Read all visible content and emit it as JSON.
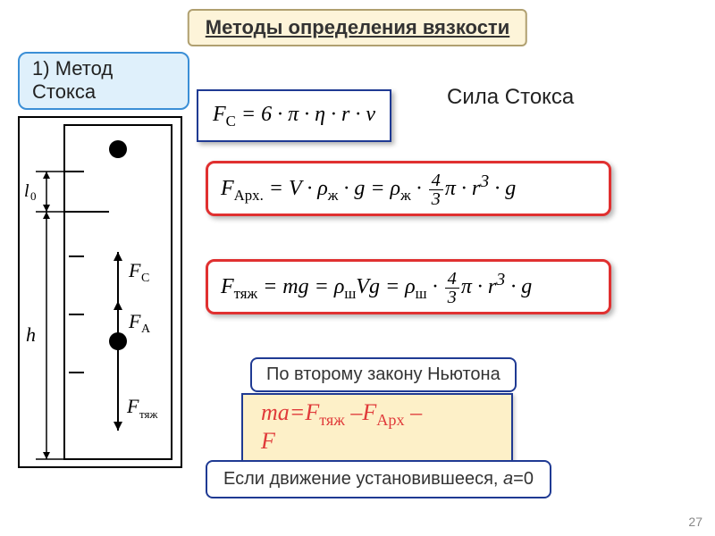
{
  "title": "Методы определения вязкости",
  "method": {
    "num": "1)",
    "name": "Метод Стокса"
  },
  "stokes": {
    "formula_html": "F<sub>C</sub> = 6 · π · η · r · v",
    "label": "Сила Стокса"
  },
  "archimedes": {
    "formula_html": "F<sub>Арх.</sub> = V · ρ<sub>ж</sub> · g = ρ<sub>ж</sub> · <span class='frac'><span class='num'>4</span><span class='den'>3</span></span>π · r<sup>3</sup> · g"
  },
  "gravity": {
    "formula_html": "F<sub>тяж</sub> = mg = ρ<sub>ш</sub>Vg = ρ<sub>ш</sub> · <span class='frac'><span class='num'>4</span><span class='den'>3</span></span>π · r<sup>3</sup> · g"
  },
  "newton_label": "По второму закону Ньютона",
  "newton_eq_html": "mа=F<sub>тяж</sub> –F<sub>Арх</sub> –<br>F",
  "steady_html": "Если движение установившееся, <i>а</i>=0",
  "page": "27",
  "diagram": {
    "l0_label": "l₀",
    "h_label": "h",
    "Fc": "F",
    "Fc_sub": "C",
    "Fa": "F",
    "Fa_sub": "A",
    "Ftg": "F",
    "Ftg_sub": "тяж",
    "colors": {
      "stroke": "#000000",
      "ball": "#000000"
    }
  },
  "colors": {
    "title_bg": "#fdf4d9",
    "title_border": "#b0a070",
    "method_bg": "#dff0fb",
    "method_border": "#3b8fd6",
    "red_border": "#e03030",
    "blue_border": "#1f3a93",
    "newton_eq_bg": "#fdf0c8",
    "newton_eq_text": "#e03a3a"
  }
}
